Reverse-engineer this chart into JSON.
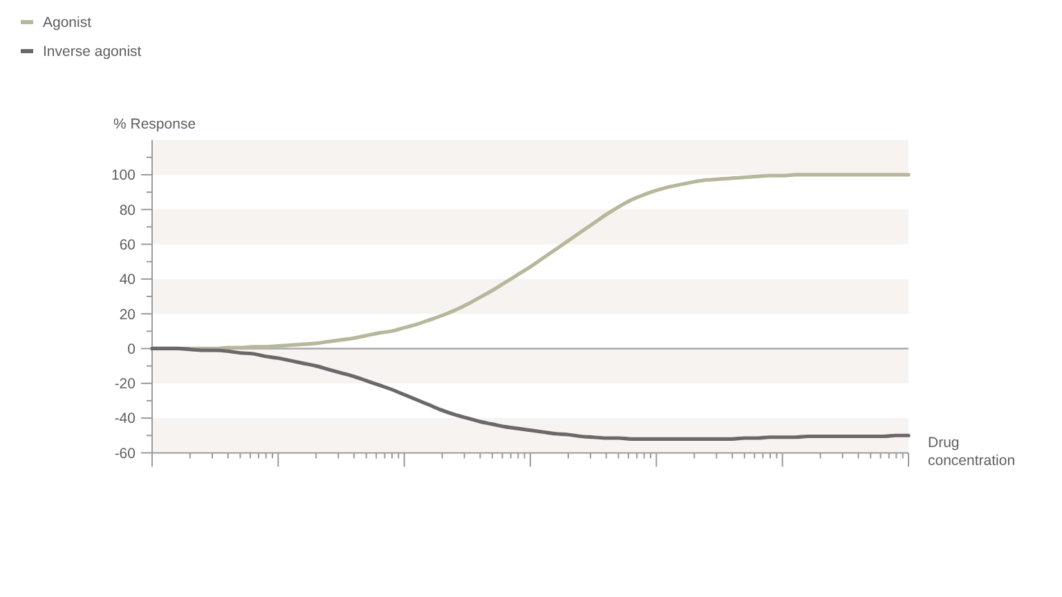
{
  "chart_data": {
    "type": "line",
    "xlabel": "Drug concentration",
    "ylabel": "% Response",
    "categories": [
      null,
      null,
      null,
      null,
      null,
      null,
      null,
      null,
      null,
      null,
      null,
      null,
      null,
      null,
      null,
      null,
      null,
      null,
      null,
      null,
      null,
      null,
      null,
      null,
      null,
      null,
      null,
      null,
      null,
      null,
      null,
      null,
      null,
      null,
      null,
      null,
      null,
      null,
      null,
      null,
      null,
      null,
      null,
      null,
      null,
      null,
      null,
      null,
      null,
      null,
      null,
      null,
      null,
      null,
      null,
      null,
      null,
      null,
      null,
      null,
      null
    ],
    "series": [
      {
        "name": "Agonist",
        "color": "#b7b79b",
        "values": [
          0,
          0,
          0,
          0,
          0,
          0,
          0.5,
          0.5,
          1,
          1,
          1.5,
          2,
          2.5,
          3,
          4,
          5,
          6,
          7.5,
          9,
          10,
          12,
          14,
          16.5,
          19,
          22,
          25.5,
          29.5,
          33.5,
          38,
          42.5,
          47,
          52,
          57,
          62,
          67,
          72,
          77,
          81.5,
          85.5,
          88.5,
          91,
          93,
          94.5,
          96,
          97,
          97.5,
          98,
          98.5,
          99,
          99.5,
          99.5,
          100,
          100,
          100,
          100,
          100,
          100,
          100,
          100,
          100,
          100
        ]
      },
      {
        "name": "Inverse agonist",
        "color": "#6c6869",
        "values": [
          0,
          0,
          0,
          -0.5,
          -1,
          -1,
          -1.5,
          -2.5,
          -3,
          -4.5,
          -5.5,
          -7,
          -8.5,
          -10,
          -12,
          -14,
          -16,
          -18.5,
          -21,
          -23.5,
          -26.5,
          -29.5,
          -32.5,
          -35.5,
          -38,
          -40,
          -42,
          -43.5,
          -45,
          -46,
          -47,
          -48,
          -49,
          -49.5,
          -50.5,
          -51,
          -51.5,
          -51.5,
          -52,
          -52,
          -52,
          -52,
          -52,
          -52,
          -52,
          -52,
          -52,
          -51.5,
          -51.5,
          -51,
          -51,
          -51,
          -50.5,
          -50.5,
          -50.5,
          -50.5,
          -50.5,
          -50.5,
          -50.5,
          -50,
          -50
        ]
      }
    ],
    "ylim": [
      -60,
      120
    ],
    "yticks": [
      -60,
      {
        "value": -50,
        "label": null
      },
      -40,
      {
        "value": -30,
        "label": null
      },
      -20,
      {
        "value": -10,
        "label": null
      },
      0,
      {
        "value": 10,
        "label": null
      },
      20,
      {
        "value": 30,
        "label": null
      },
      40,
      {
        "value": 50,
        "label": null
      },
      60,
      {
        "value": 70,
        "label": null
      },
      80,
      {
        "value": 90,
        "label": null
      },
      100,
      {
        "value": 110,
        "label": null
      }
    ],
    "bands": [
      {
        "axis": "y",
        "from": 100,
        "to": 120,
        "color": "#f7f3f0"
      },
      {
        "axis": "y",
        "from": 60,
        "to": 80,
        "color": "#f7f3f0"
      },
      {
        "axis": "y",
        "from": 20,
        "to": 40,
        "color": "#f7f3f0"
      },
      {
        "axis": "y",
        "from": -20,
        "to": 0,
        "color": "#f7f3f0"
      },
      {
        "axis": "y",
        "from": -60,
        "to": -40,
        "color": "#f7f3f0"
      }
    ],
    "ref_lines": [
      {
        "axis": "y",
        "value": 0,
        "color": "#a9a9a9"
      }
    ],
    "legend": "top left",
    "line_style": "solid",
    "tick_labels": "y"
  }
}
